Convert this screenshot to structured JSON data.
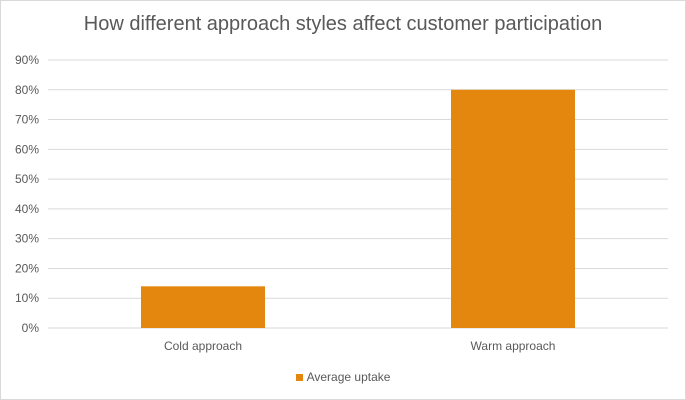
{
  "chart_data": {
    "type": "bar",
    "title": "How different approach styles affect customer participation",
    "categories": [
      "Cold approach",
      "Warm approach"
    ],
    "series": [
      {
        "name": "Average uptake",
        "values": [
          14,
          80
        ],
        "color": "#e3870e"
      }
    ],
    "ylim": [
      0,
      90
    ],
    "yticks": [
      0,
      10,
      20,
      30,
      40,
      50,
      60,
      70,
      80,
      90
    ],
    "ytick_labels": [
      "0%",
      "10%",
      "20%",
      "30%",
      "40%",
      "50%",
      "60%",
      "70%",
      "80%",
      "90%"
    ],
    "grid": true,
    "legend_position": "bottom",
    "xlabel": "",
    "ylabel": ""
  }
}
